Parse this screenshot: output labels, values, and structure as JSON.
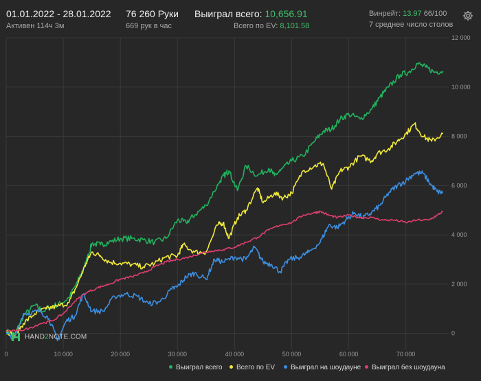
{
  "header": {
    "date_range": "01.01.2022 - 28.01.2022",
    "active_time": "Активен 114ч 3м",
    "hands_total": "76 260 Руки",
    "hands_per_hour": "669 рук в час",
    "won_label": "Выиграл всего:",
    "won_value": "10,656.91",
    "ev_label": "Всего по EV:",
    "ev_value": "8,101.58",
    "winrate_label": "Винрейт:",
    "winrate_value": "13.97",
    "winrate_extra": "66/100",
    "tables_info": "7 среднее число столов",
    "settings_icon": "gear-icon"
  },
  "logo": {
    "prefix": "HAND",
    "mid": "2",
    "suffix": "NOTE.COM"
  },
  "colors": {
    "background": "#272727",
    "grid": "#3a3a3a",
    "won_total": "#22b35e",
    "ev_total": "#f2ea3a",
    "showdown": "#3d8fe0",
    "non_showdown": "#e03f6e"
  },
  "chart_data": {
    "type": "line",
    "xlim": [
      0,
      77500
    ],
    "ylim": [
      -650,
      12000
    ],
    "x_ticks": [
      0,
      10000,
      20000,
      30000,
      40000,
      50000,
      60000,
      70000
    ],
    "x_tick_labels": [
      "0",
      "10 000",
      "20 000",
      "30 000",
      "40 000",
      "50 000",
      "60 000",
      "70 000"
    ],
    "y_ticks": [
      0,
      2000,
      4000,
      6000,
      8000,
      10000,
      12000
    ],
    "y_tick_labels": [
      "0",
      "2 000",
      "4 000",
      "6 000",
      "8 000",
      "10 000",
      "12 000"
    ],
    "grid": true,
    "legend_position": "bottom-right",
    "series": [
      {
        "name": "Выиграл всего",
        "color": "#22b35e",
        "x": [
          0,
          1500,
          3000,
          5000,
          6500,
          8000,
          9500,
          11000,
          12500,
          14000,
          15000,
          16500,
          18000,
          20000,
          22000,
          24000,
          26000,
          28000,
          30000,
          31500,
          33000,
          35000,
          37500,
          38500,
          39000,
          40500,
          42000,
          44000,
          46000,
          47000,
          48000,
          50000,
          52000,
          54000,
          55500,
          57000,
          58500,
          60000,
          62000,
          64000,
          65500,
          67000,
          69000,
          70500,
          72000,
          73500,
          75000,
          76500
        ],
        "y": [
          100,
          -50,
          700,
          1150,
          900,
          1100,
          1200,
          1450,
          2100,
          2900,
          3650,
          3600,
          3700,
          3850,
          3850,
          3800,
          3700,
          3850,
          4600,
          4500,
          4800,
          5200,
          6200,
          6500,
          6600,
          5800,
          6800,
          6400,
          6700,
          6400,
          6600,
          7000,
          7200,
          7800,
          8200,
          8300,
          8700,
          8900,
          8700,
          9100,
          9600,
          10000,
          10500,
          10600,
          10950,
          10800,
          10600,
          10656.91
        ]
      },
      {
        "name": "Всего по EV",
        "color": "#f2ea3a",
        "x": [
          0,
          1500,
          3000,
          5000,
          7000,
          9000,
          11000,
          12500,
          14000,
          15000,
          16500,
          18000,
          20000,
          22000,
          24000,
          26000,
          28000,
          30000,
          31000,
          33000,
          35000,
          37000,
          38000,
          39000,
          40500,
          42000,
          44000,
          45000,
          47000,
          48500,
          50000,
          52000,
          54000,
          55500,
          57000,
          58500,
          60000,
          62000,
          64000,
          65000,
          67000,
          68500,
          70000,
          71500,
          73000,
          74500,
          76500
        ],
        "y": [
          100,
          -100,
          400,
          800,
          1000,
          1100,
          1250,
          2000,
          2850,
          3300,
          3150,
          2900,
          2850,
          2800,
          2700,
          2850,
          3100,
          3150,
          3600,
          3300,
          3300,
          4400,
          4500,
          3850,
          4700,
          5000,
          5900,
          5300,
          5700,
          5500,
          5700,
          6600,
          6800,
          6900,
          5850,
          6600,
          6750,
          7200,
          7000,
          7300,
          7500,
          7800,
          8100,
          8500,
          8000,
          7800,
          8101.58
        ]
      },
      {
        "name": "Выиграл на шоудауне",
        "color": "#3d8fe0",
        "x": [
          0,
          1500,
          3000,
          4500,
          6000,
          7500,
          9000,
          10500,
          12000,
          13500,
          15000,
          17000,
          19000,
          21000,
          23000,
          25000,
          27000,
          29000,
          30000,
          31500,
          33000,
          35000,
          36500,
          38000,
          40000,
          42000,
          43500,
          45000,
          46500,
          48000,
          49500,
          51500,
          53000,
          55000,
          56500,
          58000,
          59500,
          61000,
          62500,
          64000,
          65500,
          67000,
          68500,
          70000,
          71500,
          73000,
          74500,
          75500,
          76500
        ],
        "y": [
          0,
          -200,
          800,
          850,
          900,
          600,
          -300,
          500,
          700,
          1600,
          900,
          900,
          1500,
          1600,
          1500,
          1200,
          1300,
          1800,
          1900,
          2300,
          2450,
          2200,
          3000,
          2900,
          3100,
          3000,
          3500,
          2900,
          2800,
          2500,
          3000,
          3100,
          3300,
          3700,
          4400,
          4300,
          4600,
          4900,
          4700,
          4900,
          5200,
          5700,
          6000,
          6200,
          6500,
          6500,
          6000,
          5750,
          5700
        ]
      },
      {
        "name": "Выиграл без шоудауна",
        "color": "#e03f6e",
        "x": [
          0,
          2000,
          4000,
          6000,
          8000,
          10000,
          12000,
          14000,
          16000,
          18000,
          20000,
          22000,
          24000,
          26000,
          28000,
          30000,
          32000,
          34000,
          36000,
          38000,
          40000,
          42000,
          44000,
          46000,
          48000,
          50000,
          52000,
          54000,
          55000,
          56500,
          58000,
          60000,
          62000,
          64000,
          66000,
          68000,
          70000,
          72000,
          74000,
          75500,
          76500
        ],
        "y": [
          100,
          100,
          200,
          400,
          500,
          800,
          1300,
          1650,
          1850,
          2000,
          2200,
          2300,
          2450,
          2700,
          2900,
          3000,
          3100,
          3250,
          3350,
          3400,
          3500,
          3700,
          3900,
          4200,
          4400,
          4500,
          4800,
          4900,
          4950,
          4800,
          4700,
          4800,
          4700,
          4700,
          4600,
          4600,
          4500,
          4600,
          4600,
          4800,
          4950
        ]
      }
    ]
  }
}
